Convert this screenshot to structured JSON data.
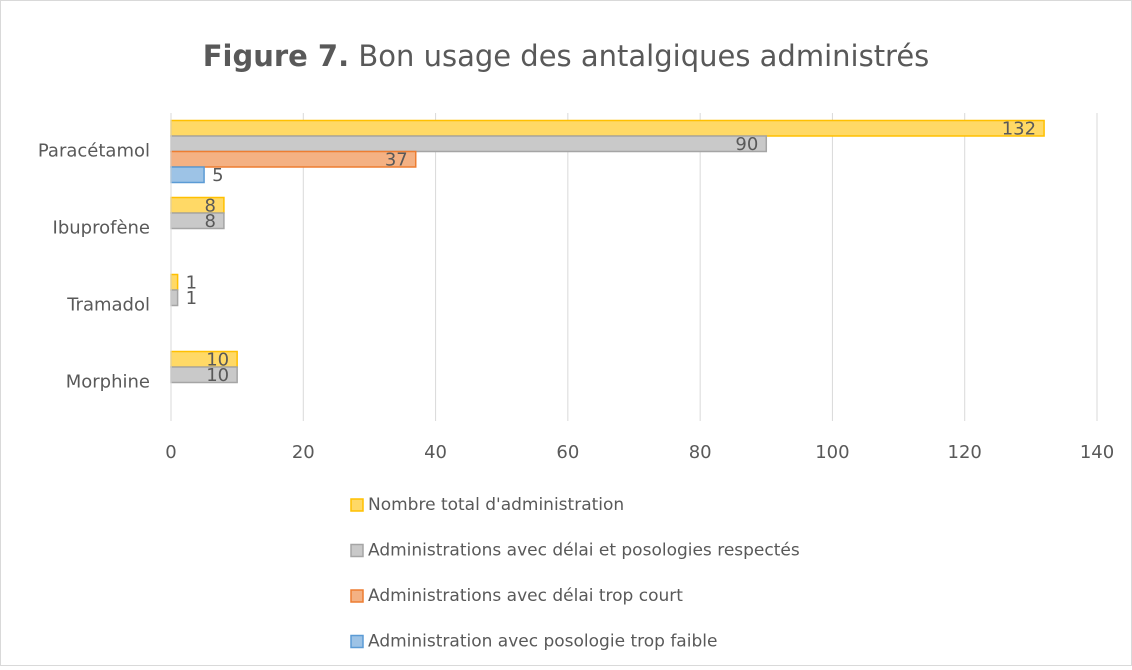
{
  "chart_data": {
    "type": "hbar",
    "title": {
      "number": "Figure 7.",
      "text": "Bon usage des antalgiques administrés"
    },
    "categories": [
      "Paracétamol",
      "Ibuprofène",
      "Tramadol",
      "Morphine"
    ],
    "series": [
      {
        "name": "Nombre total d'administration",
        "color": "#ffd966",
        "stroke": "#ffc000",
        "values": [
          132,
          8,
          1,
          10
        ]
      },
      {
        "name": "Administrations avec délai et posologies respectés",
        "color": "#c9c9c9",
        "stroke": "#a5a5a5",
        "values": [
          90,
          8,
          1,
          10
        ]
      },
      {
        "name": "Administrations avec délai trop court",
        "color": "#f4b183",
        "stroke": "#ed7d31",
        "values": [
          37,
          null,
          null,
          null
        ]
      },
      {
        "name": "Administration avec posologie trop faible",
        "color": "#9dc3e6",
        "stroke": "#5b9bd5",
        "values": [
          5,
          null,
          null,
          null
        ]
      }
    ],
    "xlim": [
      0,
      140
    ],
    "xticks": [
      0,
      20,
      40,
      60,
      80,
      100,
      120,
      140
    ],
    "grid": true,
    "legend": "bottom"
  }
}
